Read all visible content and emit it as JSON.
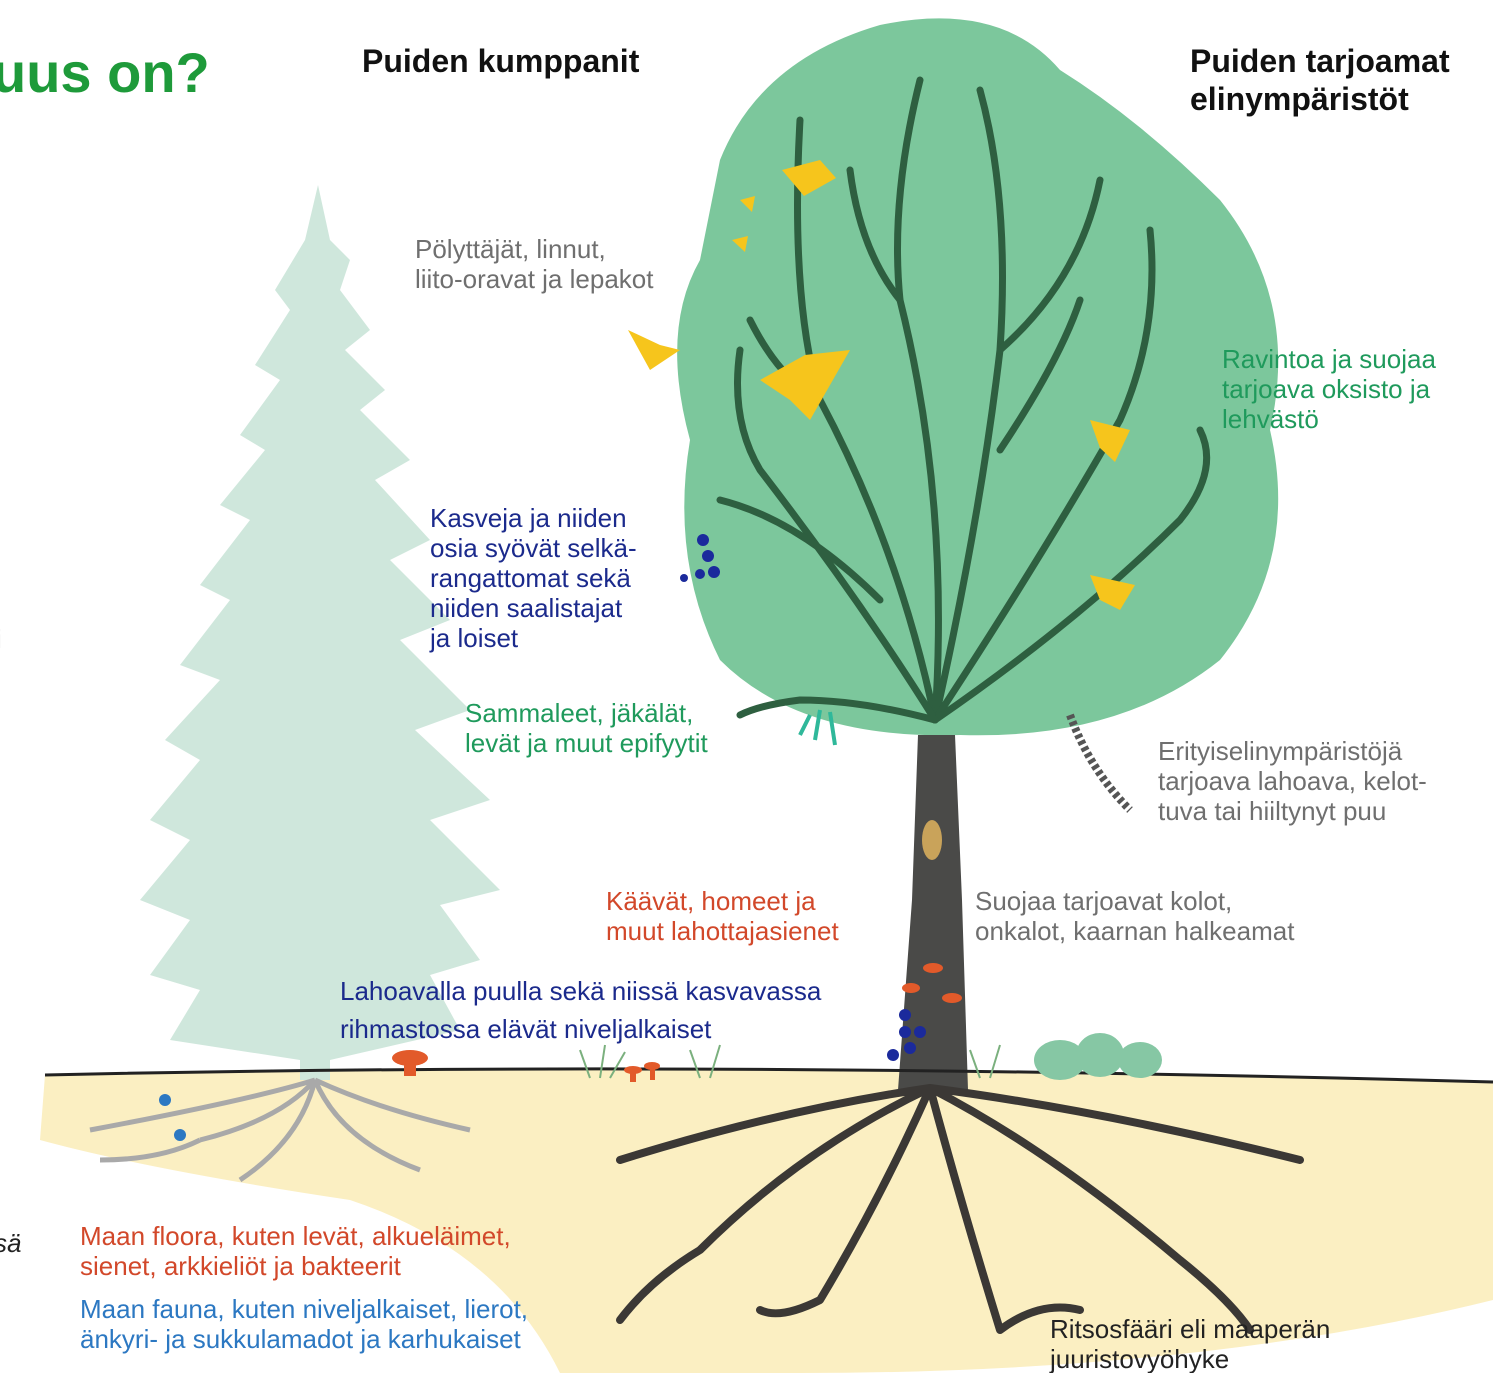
{
  "title": "uus on?",
  "fragments": [
    "i",
    "sä"
  ],
  "headings": {
    "left": "Puiden kumppanit",
    "right": [
      "Puiden tarjoamat",
      "elinympäristöt"
    ]
  },
  "labels": [
    {
      "lines": [
        "Pölyttäjät, linnut,",
        "liito-oravat ja lepakot"
      ]
    },
    {
      "lines": [
        "Ravintoa ja suojaa",
        "tarjoava oksisto ja",
        "lehvästö"
      ]
    },
    {
      "lines": [
        "Kasveja ja niiden",
        "osia syövät selkä-",
        "rangattomat sekä",
        "niiden saalistajat",
        "ja loiset"
      ]
    },
    {
      "lines": [
        "Sammaleet, jäkälät,",
        "levät ja muut epifyytit"
      ]
    },
    {
      "lines": [
        "Erityiselinympäristöjä",
        "tarjoava lahoava, kelot-",
        "tuva tai hiiltynyt puu"
      ]
    },
    {
      "lines": [
        "Käävät, homeet ja",
        "muut lahottajasienet"
      ]
    },
    {
      "lines": [
        "Suojaa tarjoavat kolot,",
        "onkalot, kaarnan halkeamat"
      ]
    },
    {
      "lines": [
        "Lahoavalla puulla sekä niissä kasvavassa",
        "rihmastossa elävät niveljalkaiset"
      ]
    },
    {
      "lines": [
        "Maan floora, kuten levät, alkueläimet,",
        "sienet, arkkieliöt ja bakteerit"
      ]
    },
    {
      "lines": [
        "Maan fauna, kuten niveljalkaiset, lierot,",
        "änkyri- ja sukkulamadot ja karhukaiset"
      ]
    },
    {
      "lines": [
        "Ritsosfääri eli maaperän",
        "juuristovyöhyke"
      ]
    }
  ]
}
